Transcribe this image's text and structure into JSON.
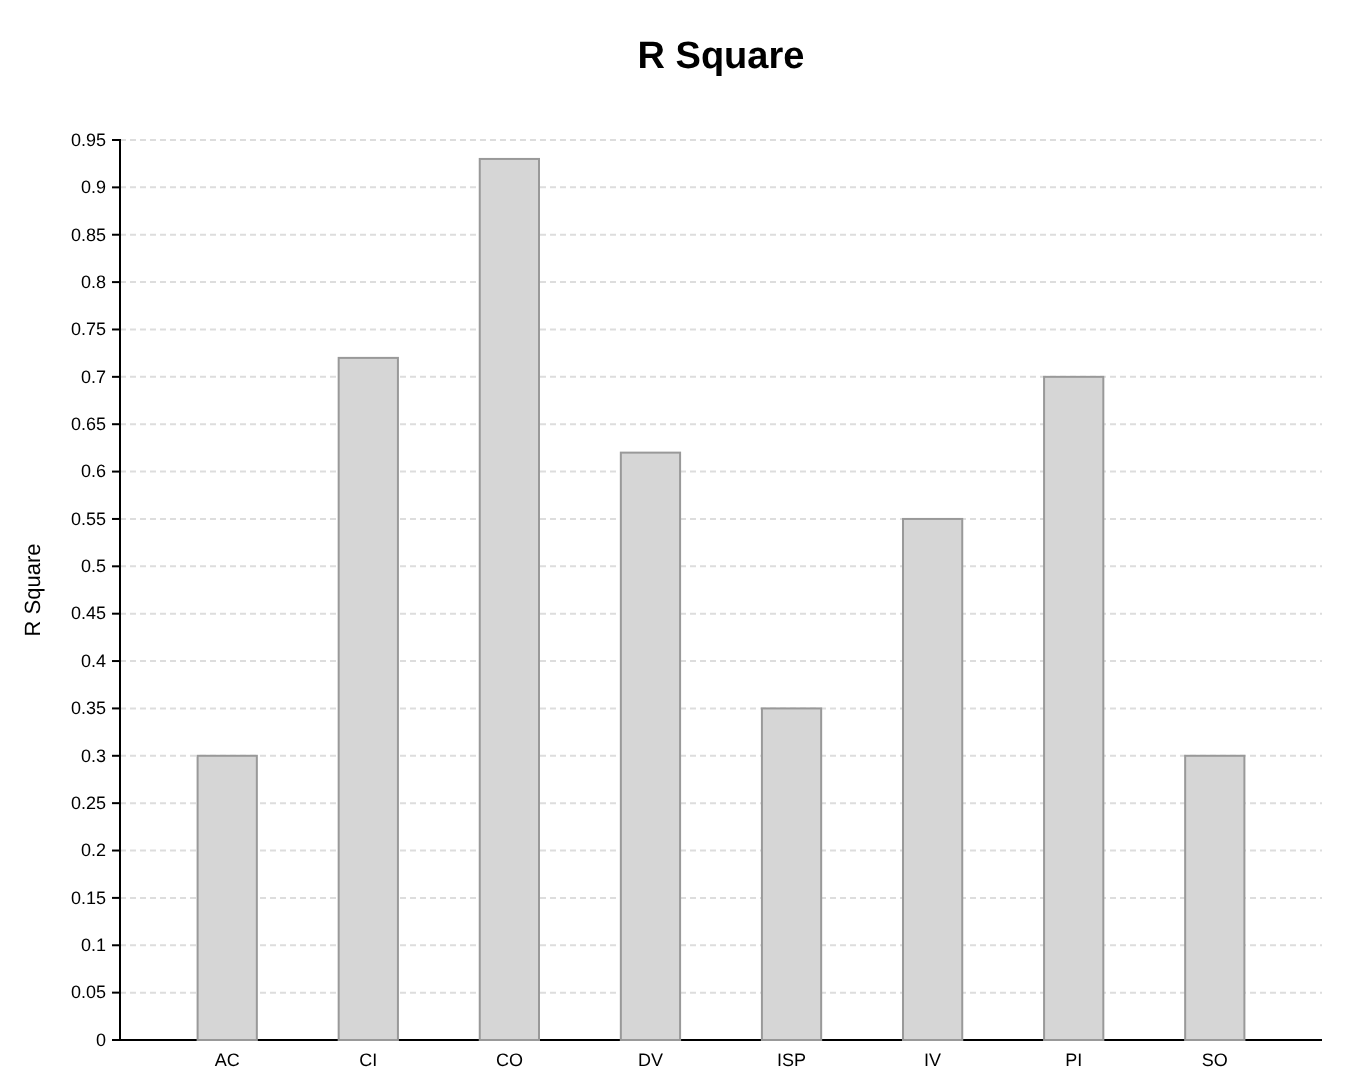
{
  "chart_data": {
    "type": "bar",
    "title": "R Square",
    "ylabel": "R Square",
    "categories": [
      "AC",
      "CI",
      "CO",
      "DV",
      "ISP",
      "IV",
      "PI",
      "SO"
    ],
    "values": [
      0.3,
      0.72,
      0.93,
      0.62,
      0.35,
      0.55,
      0.7,
      0.3
    ],
    "color": "#d6d6d6",
    "ylim": [
      0,
      0.95
    ],
    "yticks": [
      0,
      0.05,
      0.1,
      0.15,
      0.2,
      0.25,
      0.3,
      0.35,
      0.4,
      0.45,
      0.5,
      0.55,
      0.6,
      0.65,
      0.7,
      0.75,
      0.8,
      0.85,
      0.9,
      0.95
    ],
    "grid": "y"
  }
}
